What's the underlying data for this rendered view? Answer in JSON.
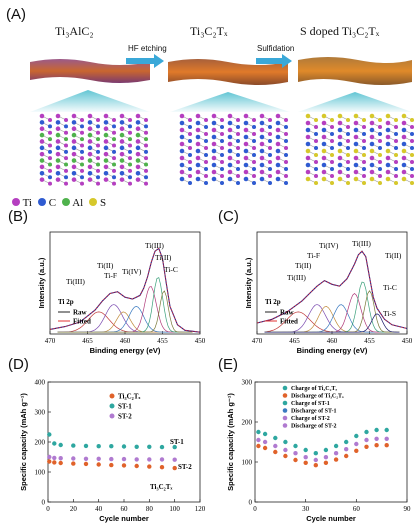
{
  "panels": {
    "A": {
      "label": "(A)",
      "materials": [
        "Ti₃AlC₂",
        "Ti₃C₂Tₓ",
        "S doped Ti₃C₂Tₓ"
      ],
      "arrows": [
        "HF etching",
        "Sulfidation"
      ],
      "legend": [
        {
          "label": "Ti",
          "color": "#b53fc0"
        },
        {
          "label": "C",
          "color": "#2f5bd1"
        },
        {
          "label": "Al",
          "color": "#4fb24c"
        },
        {
          "label": "S",
          "color": "#d6c82b"
        }
      ]
    },
    "B": {
      "label": "(B)"
    },
    "C": {
      "label": "(C)"
    },
    "D": {
      "label": "(D)"
    },
    "E": {
      "label": "(E)"
    }
  },
  "chart_data": [
    {
      "id": "B",
      "type": "line",
      "xlabel": "Binding energy (eV)",
      "ylabel": "Intensity (a.u.)",
      "xlim": [
        470,
        450
      ],
      "xticks": [
        470,
        465,
        460,
        455,
        450
      ],
      "inset_title": "Ti 2p",
      "legend": [
        {
          "name": "Raw",
          "color": "#222222"
        },
        {
          "name": "Fitted",
          "color": "#e03030"
        }
      ],
      "peak_labels": [
        "Ti(III)",
        "Ti(II)",
        "Ti-F",
        "Ti(IV)",
        "Ti(III)",
        "Ti(II)",
        "Ti-C"
      ],
      "series": [
        {
          "name": "Raw",
          "x": [
            470,
            468,
            466,
            464,
            463,
            462,
            461,
            460,
            459,
            458,
            457.5,
            457,
            456.5,
            456,
            455.5,
            455,
            454.5,
            454,
            453,
            452,
            450
          ],
          "y": [
            0.05,
            0.08,
            0.13,
            0.26,
            0.36,
            0.44,
            0.46,
            0.4,
            0.38,
            0.42,
            0.5,
            0.62,
            0.78,
            0.9,
            0.93,
            0.82,
            0.55,
            0.3,
            0.1,
            0.04,
            0.02
          ]
        }
      ]
    },
    {
      "id": "C",
      "type": "line",
      "xlabel": "Binding energy (eV)",
      "ylabel": "Intensity (a.u.)",
      "xlim": [
        470,
        450
      ],
      "xticks": [
        470,
        465,
        460,
        455,
        450
      ],
      "inset_title": "Ti 2p",
      "legend": [
        {
          "name": "Raw",
          "color": "#222222"
        },
        {
          "name": "Fitted",
          "color": "#e03030"
        }
      ],
      "peak_labels": [
        "Ti(III)",
        "Ti(II)",
        "Ti-F",
        "Ti(IV)",
        "Ti(III)",
        "Ti(II)",
        "Ti-C",
        "Ti-S"
      ],
      "series": [
        {
          "name": "Raw",
          "x": [
            470,
            468,
            466,
            464,
            463,
            462,
            461,
            460,
            459,
            458,
            457,
            456.5,
            456,
            455.5,
            455,
            454.5,
            454,
            453,
            452,
            450
          ],
          "y": [
            0.12,
            0.16,
            0.24,
            0.36,
            0.44,
            0.52,
            0.58,
            0.54,
            0.52,
            0.6,
            0.76,
            0.86,
            0.9,
            0.84,
            0.62,
            0.4,
            0.28,
            0.16,
            0.1,
            0.06
          ]
        }
      ]
    },
    {
      "id": "D",
      "type": "scatter",
      "xlabel": "Cycle number",
      "ylabel": "Specific capacity (mAh g⁻¹)",
      "xlim": [
        0,
        120
      ],
      "ylim": [
        0,
        400
      ],
      "xticks": [
        0,
        20,
        40,
        60,
        80,
        100,
        120
      ],
      "yticks": [
        0,
        100,
        200,
        300,
        400
      ],
      "legend_entries": [
        "Ti₃C₂Tₓ",
        "ST-1",
        "ST-2"
      ],
      "annotations": [
        "ST-1",
        "ST-2",
        "Ti₃C₂Tₓ"
      ],
      "series": [
        {
          "name": "Ti₃C₂Tₓ",
          "color": "#e0622a",
          "x": [
            1,
            5,
            10,
            20,
            30,
            40,
            50,
            60,
            70,
            80,
            90,
            100
          ],
          "y": [
            135,
            132,
            130,
            128,
            127,
            125,
            123,
            122,
            120,
            118,
            116,
            113
          ]
        },
        {
          "name": "ST-1",
          "color": "#2ea7a0",
          "x": [
            1,
            5,
            10,
            20,
            30,
            40,
            50,
            60,
            70,
            80,
            90,
            100
          ],
          "y": [
            225,
            195,
            190,
            188,
            187,
            186,
            186,
            185,
            184,
            184,
            183,
            183
          ]
        },
        {
          "name": "ST-2",
          "color": "#b07ad0",
          "x": [
            1,
            5,
            10,
            20,
            30,
            40,
            50,
            60,
            70,
            80,
            90,
            100
          ],
          "y": [
            150,
            147,
            146,
            145,
            144,
            144,
            143,
            143,
            142,
            142,
            142,
            141
          ]
        }
      ]
    },
    {
      "id": "E",
      "type": "scatter",
      "xlabel": "Cycle number",
      "ylabel": "Specific capacity (mAh g⁻¹)",
      "xlim": [
        0,
        90
      ],
      "ylim": [
        0,
        300
      ],
      "xticks": [
        0,
        30,
        60,
        90
      ],
      "yticks": [
        0,
        100,
        200,
        300
      ],
      "legend_entries": [
        "Charge of Ti₃C₂Tₓ",
        "Discharge of Ti₃C₂Tₓ",
        "Charge of ST-1",
        "Discharge of ST-1",
        "Charge of ST-2",
        "Discharge of ST-2"
      ],
      "series": [
        {
          "name": "ST-1",
          "color": "#2ea7a0",
          "x": [
            2,
            6,
            12,
            18,
            24,
            30,
            36,
            42,
            48,
            54,
            60,
            66,
            72,
            78
          ],
          "y": [
            175,
            170,
            160,
            150,
            140,
            130,
            122,
            130,
            140,
            150,
            165,
            175,
            180,
            180
          ]
        },
        {
          "name": "ST-2",
          "color": "#b07ad0",
          "x": [
            2,
            6,
            12,
            18,
            24,
            30,
            36,
            42,
            48,
            54,
            60,
            66,
            72,
            78
          ],
          "y": [
            155,
            150,
            140,
            130,
            122,
            112,
            105,
            112,
            122,
            132,
            145,
            155,
            158,
            158
          ]
        },
        {
          "name": "Ti₃C₂Tₓ",
          "color": "#e0622a",
          "x": [
            2,
            6,
            12,
            18,
            24,
            30,
            36,
            42,
            48,
            54,
            60,
            66,
            72,
            78
          ],
          "y": [
            140,
            135,
            125,
            115,
            105,
            98,
            92,
            98,
            106,
            115,
            128,
            138,
            142,
            142
          ]
        }
      ]
    }
  ]
}
